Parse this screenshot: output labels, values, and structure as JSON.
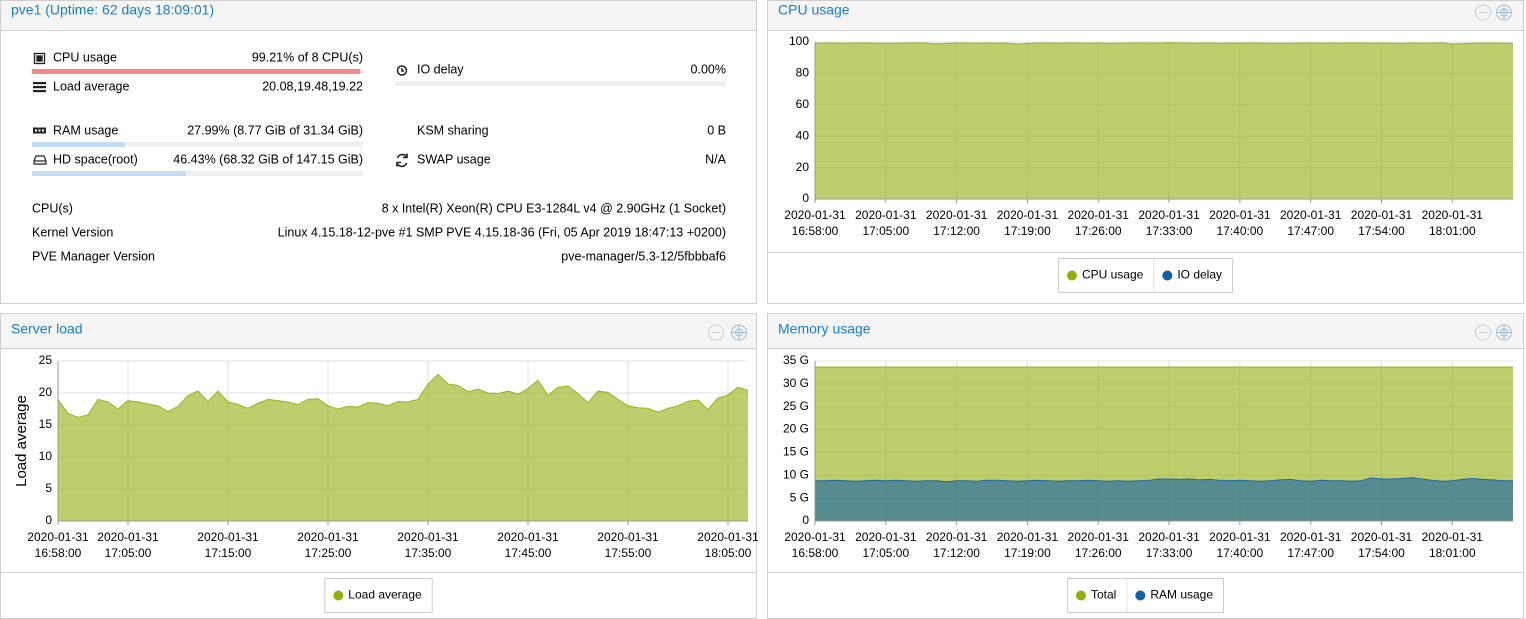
{
  "status": {
    "title": "pve1 (Uptime: 62 days 18:09:01)",
    "left": [
      {
        "label": "CPU usage",
        "value": "99.21% of 8 CPU(s)",
        "percent": 99.21,
        "color": "#f08a8a"
      },
      {
        "label": "Load average",
        "value": "20.08,19.48,19.22"
      },
      {
        "label": "RAM usage",
        "value": "27.99% (8.77 GiB of 31.34 GiB)",
        "percent": 27.99,
        "color": "#c2ddf2"
      },
      {
        "label": "HD space(root)",
        "value": "46.43% (68.32 GiB of 147.15 GiB)",
        "percent": 46.43,
        "color": "#c2ddf2"
      }
    ],
    "right": [
      {
        "label": "IO delay",
        "value": "0.00%",
        "percent": 0,
        "color": "#c2ddf2"
      },
      {
        "label": "KSM sharing",
        "value": "0 B"
      },
      {
        "label": "SWAP usage",
        "value": "N/A"
      }
    ],
    "info": [
      {
        "label": "CPU(s)",
        "value": "8 x Intel(R) Xeon(R) CPU E3-1284L v4 @ 2.90GHz (1 Socket)"
      },
      {
        "label": "Kernel Version",
        "value": "Linux 4.15.18-12-pve #1 SMP PVE 4.15.18-36 (Fri, 05 Apr 2019 18:47:13 +0200)"
      },
      {
        "label": "PVE Manager Version",
        "value": "pve-manager/5.3-12/5fbbbaf6"
      }
    ]
  },
  "chart_data": [
    {
      "type": "area",
      "title": "CPU usage",
      "grid": true,
      "x": [
        "16:58:00",
        "16:59:00",
        "17:00:00",
        "17:01:00",
        "17:02:00",
        "17:03:00",
        "17:04:00",
        "17:05:00",
        "17:06:00",
        "17:07:00",
        "17:08:00",
        "17:09:00",
        "17:10:00",
        "17:11:00",
        "17:12:00",
        "17:13:00",
        "17:14:00",
        "17:15:00",
        "17:16:00",
        "17:17:00",
        "17:18:00",
        "17:19:00",
        "17:20:00",
        "17:21:00",
        "17:22:00",
        "17:23:00",
        "17:24:00",
        "17:25:00",
        "17:26:00",
        "17:27:00",
        "17:28:00",
        "17:29:00",
        "17:30:00",
        "17:31:00",
        "17:32:00",
        "17:33:00",
        "17:34:00",
        "17:35:00",
        "17:36:00",
        "17:37:00",
        "17:38:00",
        "17:39:00",
        "17:40:00",
        "17:41:00",
        "17:42:00",
        "17:43:00",
        "17:44:00",
        "17:45:00",
        "17:46:00",
        "17:47:00",
        "17:48:00",
        "17:49:00",
        "17:50:00",
        "17:51:00",
        "17:52:00",
        "17:53:00",
        "17:54:00",
        "17:55:00",
        "17:56:00",
        "17:57:00",
        "17:58:00",
        "17:59:00",
        "18:00:00",
        "18:01:00",
        "18:02:00",
        "18:03:00",
        "18:04:00",
        "18:05:00",
        "18:06:00",
        "18:07:00"
      ],
      "xlim": [
        "16:58:00",
        "18:07:00"
      ],
      "xticks": [
        [
          "2020-01-31",
          "16:58:00"
        ],
        [
          "2020-01-31",
          "17:05:00"
        ],
        [
          "2020-01-31",
          "17:12:00"
        ],
        [
          "2020-01-31",
          "17:19:00"
        ],
        [
          "2020-01-31",
          "17:26:00"
        ],
        [
          "2020-01-31",
          "17:33:00"
        ],
        [
          "2020-01-31",
          "17:40:00"
        ],
        [
          "2020-01-31",
          "17:47:00"
        ],
        [
          "2020-01-31",
          "17:54:00"
        ],
        [
          "2020-01-31",
          "18:01:00"
        ]
      ],
      "ylim": [
        0,
        100
      ],
      "yticks": [
        0,
        20,
        40,
        60,
        80,
        100
      ],
      "series": [
        {
          "name": "CPU usage",
          "color": "#94ae0a",
          "values": [
            99.2,
            99.3,
            99.3,
            99.2,
            99.3,
            99.4,
            99.2,
            99.1,
            99.2,
            99.3,
            99.4,
            99.3,
            98.9,
            99.1,
            99.3,
            99.3,
            99.2,
            99.3,
            99.2,
            99.3,
            98.8,
            99.1,
            99.3,
            99.3,
            99.2,
            99.4,
            99.3,
            99.2,
            99.3,
            99.1,
            99.2,
            99.3,
            99.4,
            99.3,
            99.3,
            99.5,
            99.4,
            99.3,
            99.2,
            99.3,
            99.1,
            99.3,
            99.2,
            99.3,
            99.3,
            99.2,
            99.1,
            99.2,
            99.3,
            99.3,
            99.2,
            99.3,
            99.2,
            99.4,
            99.3,
            99.2,
            99.3,
            99.2,
            99.1,
            99.3,
            99.2,
            99.3,
            99.4,
            98.8,
            99.0,
            99.2,
            99.3,
            99.3,
            99.2,
            99.1
          ]
        },
        {
          "name": "IO delay",
          "color": "#115fa6",
          "values": [
            0,
            0,
            0,
            0,
            0,
            0,
            0,
            0,
            0,
            0,
            0,
            0,
            0,
            0,
            0,
            0,
            0,
            0,
            0,
            0,
            0,
            0,
            0,
            0,
            0,
            0,
            0,
            0,
            0,
            0,
            0,
            0,
            0,
            0,
            0,
            0,
            0,
            0,
            0,
            0,
            0,
            0,
            0,
            0,
            0,
            0,
            0,
            0,
            0,
            0,
            0,
            0,
            0,
            0,
            0,
            0,
            0,
            0,
            0,
            0,
            0,
            0,
            0,
            0,
            0,
            0,
            0,
            0,
            0,
            0
          ]
        }
      ]
    },
    {
      "type": "area",
      "title": "Server load",
      "ylabel": "Load average",
      "grid": true,
      "x": [
        "16:58:00",
        "16:59:00",
        "17:00:00",
        "17:01:00",
        "17:02:00",
        "17:03:00",
        "17:04:00",
        "17:05:00",
        "17:06:00",
        "17:07:00",
        "17:08:00",
        "17:09:00",
        "17:10:00",
        "17:11:00",
        "17:12:00",
        "17:13:00",
        "17:14:00",
        "17:15:00",
        "17:16:00",
        "17:17:00",
        "17:18:00",
        "17:19:00",
        "17:20:00",
        "17:21:00",
        "17:22:00",
        "17:23:00",
        "17:24:00",
        "17:25:00",
        "17:26:00",
        "17:27:00",
        "17:28:00",
        "17:29:00",
        "17:30:00",
        "17:31:00",
        "17:32:00",
        "17:33:00",
        "17:34:00",
        "17:35:00",
        "17:36:00",
        "17:37:00",
        "17:38:00",
        "17:39:00",
        "17:40:00",
        "17:41:00",
        "17:42:00",
        "17:43:00",
        "17:44:00",
        "17:45:00",
        "17:46:00",
        "17:47:00",
        "17:48:00",
        "17:49:00",
        "17:50:00",
        "17:51:00",
        "17:52:00",
        "17:53:00",
        "17:54:00",
        "17:55:00",
        "17:56:00",
        "17:57:00",
        "17:58:00",
        "17:59:00",
        "18:00:00",
        "18:01:00",
        "18:02:00",
        "18:03:00",
        "18:04:00",
        "18:05:00",
        "18:06:00",
        "18:07:00"
      ],
      "xlim": [
        "16:58:00",
        "18:07:00"
      ],
      "xticks": [
        [
          "2020-01-31",
          "16:58:00"
        ],
        [
          "2020-01-31",
          "17:05:00"
        ],
        [
          "2020-01-31",
          "17:15:00"
        ],
        [
          "2020-01-31",
          "17:25:00"
        ],
        [
          "2020-01-31",
          "17:35:00"
        ],
        [
          "2020-01-31",
          "17:45:00"
        ],
        [
          "2020-01-31",
          "17:55:00"
        ],
        [
          "2020-01-31",
          "18:05:00"
        ]
      ],
      "ylim": [
        0,
        25
      ],
      "yticks": [
        0,
        5,
        10,
        15,
        20,
        25
      ],
      "series": [
        {
          "name": "Load average",
          "color": "#94ae0a",
          "values": [
            19.0,
            16.8,
            16.2,
            16.6,
            19.0,
            18.6,
            17.5,
            18.8,
            18.6,
            18.3,
            18.0,
            17.1,
            17.9,
            19.6,
            20.3,
            18.7,
            20.3,
            18.6,
            18.2,
            17.6,
            18.4,
            19.0,
            18.8,
            18.6,
            18.2,
            19.0,
            19.1,
            18.0,
            17.5,
            17.9,
            17.8,
            18.5,
            18.4,
            18.0,
            18.7,
            18.6,
            19.0,
            21.4,
            22.9,
            21.4,
            21.2,
            20.2,
            20.6,
            20.0,
            19.9,
            20.3,
            19.8,
            20.7,
            22.0,
            19.6,
            20.9,
            21.1,
            19.9,
            18.5,
            20.3,
            20.1,
            19.0,
            18.0,
            17.7,
            17.6,
            17.0,
            17.6,
            18.0,
            18.7,
            18.9,
            17.4,
            19.2,
            19.7,
            20.9,
            20.4
          ]
        }
      ]
    },
    {
      "type": "area",
      "title": "Memory usage",
      "grid": true,
      "x": [
        "16:58:00",
        "16:59:00",
        "17:00:00",
        "17:01:00",
        "17:02:00",
        "17:03:00",
        "17:04:00",
        "17:05:00",
        "17:06:00",
        "17:07:00",
        "17:08:00",
        "17:09:00",
        "17:10:00",
        "17:11:00",
        "17:12:00",
        "17:13:00",
        "17:14:00",
        "17:15:00",
        "17:16:00",
        "17:17:00",
        "17:18:00",
        "17:19:00",
        "17:20:00",
        "17:21:00",
        "17:22:00",
        "17:23:00",
        "17:24:00",
        "17:25:00",
        "17:26:00",
        "17:27:00",
        "17:28:00",
        "17:29:00",
        "17:30:00",
        "17:31:00",
        "17:32:00",
        "17:33:00",
        "17:34:00",
        "17:35:00",
        "17:36:00",
        "17:37:00",
        "17:38:00",
        "17:39:00",
        "17:40:00",
        "17:41:00",
        "17:42:00",
        "17:43:00",
        "17:44:00",
        "17:45:00",
        "17:46:00",
        "17:47:00",
        "17:48:00",
        "17:49:00",
        "17:50:00",
        "17:51:00",
        "17:52:00",
        "17:53:00",
        "17:54:00",
        "17:55:00",
        "17:56:00",
        "17:57:00",
        "17:58:00",
        "17:59:00",
        "18:00:00",
        "18:01:00",
        "18:02:00",
        "18:03:00",
        "18:04:00",
        "18:05:00",
        "18:06:00",
        "18:07:00"
      ],
      "xlim": [
        "16:58:00",
        "18:07:00"
      ],
      "xticks": [
        [
          "2020-01-31",
          "16:58:00"
        ],
        [
          "2020-01-31",
          "17:05:00"
        ],
        [
          "2020-01-31",
          "17:12:00"
        ],
        [
          "2020-01-31",
          "17:19:00"
        ],
        [
          "2020-01-31",
          "17:26:00"
        ],
        [
          "2020-01-31",
          "17:33:00"
        ],
        [
          "2020-01-31",
          "17:40:00"
        ],
        [
          "2020-01-31",
          "17:47:00"
        ],
        [
          "2020-01-31",
          "17:54:00"
        ],
        [
          "2020-01-31",
          "18:01:00"
        ]
      ],
      "ylim": [
        0,
        35
      ],
      "yticks": [
        0,
        {
          "value": 5,
          "label": "5 G"
        },
        {
          "value": 10,
          "label": "10 G"
        },
        {
          "value": 15,
          "label": "15 G"
        },
        {
          "value": 20,
          "label": "20 G"
        },
        {
          "value": 25,
          "label": "25 G"
        },
        {
          "value": 30,
          "label": "30 G"
        },
        {
          "value": 35,
          "label": "35 G"
        }
      ],
      "series": [
        {
          "name": "Total",
          "color": "#94ae0a",
          "values": [
            33.7,
            33.7,
            33.7,
            33.7,
            33.7,
            33.7,
            33.7,
            33.7,
            33.7,
            33.7,
            33.7,
            33.7,
            33.7,
            33.7,
            33.7,
            33.7,
            33.7,
            33.7,
            33.7,
            33.7,
            33.7,
            33.7,
            33.7,
            33.7,
            33.7,
            33.7,
            33.7,
            33.7,
            33.7,
            33.7,
            33.7,
            33.7,
            33.7,
            33.7,
            33.7,
            33.7,
            33.7,
            33.7,
            33.7,
            33.7,
            33.7,
            33.7,
            33.7,
            33.7,
            33.7,
            33.7,
            33.7,
            33.7,
            33.7,
            33.7,
            33.7,
            33.7,
            33.7,
            33.7,
            33.7,
            33.7,
            33.7,
            33.7,
            33.7,
            33.7,
            33.7,
            33.7,
            33.7,
            33.7,
            33.7,
            33.7,
            33.7,
            33.7,
            33.7,
            33.7
          ]
        },
        {
          "name": "RAM usage",
          "color": "#115fa6",
          "values": [
            8.8,
            8.8,
            8.9,
            8.8,
            8.7,
            8.8,
            8.9,
            8.8,
            8.9,
            8.8,
            8.7,
            8.8,
            8.8,
            8.6,
            8.8,
            8.8,
            8.7,
            8.9,
            8.9,
            8.8,
            8.7,
            8.8,
            8.9,
            8.8,
            8.7,
            8.8,
            8.8,
            8.9,
            8.8,
            8.7,
            8.8,
            8.7,
            8.8,
            8.9,
            9.2,
            9.2,
            9.1,
            9.2,
            9.0,
            9.1,
            8.9,
            8.8,
            8.9,
            8.8,
            8.7,
            8.8,
            9.0,
            9.1,
            8.8,
            8.7,
            8.9,
            8.8,
            8.8,
            8.7,
            8.8,
            9.4,
            9.2,
            9.2,
            9.3,
            9.5,
            9.2,
            8.9,
            8.7,
            8.8,
            9.1,
            9.3,
            9.1,
            9.0,
            8.8,
            8.8
          ]
        }
      ]
    }
  ]
}
